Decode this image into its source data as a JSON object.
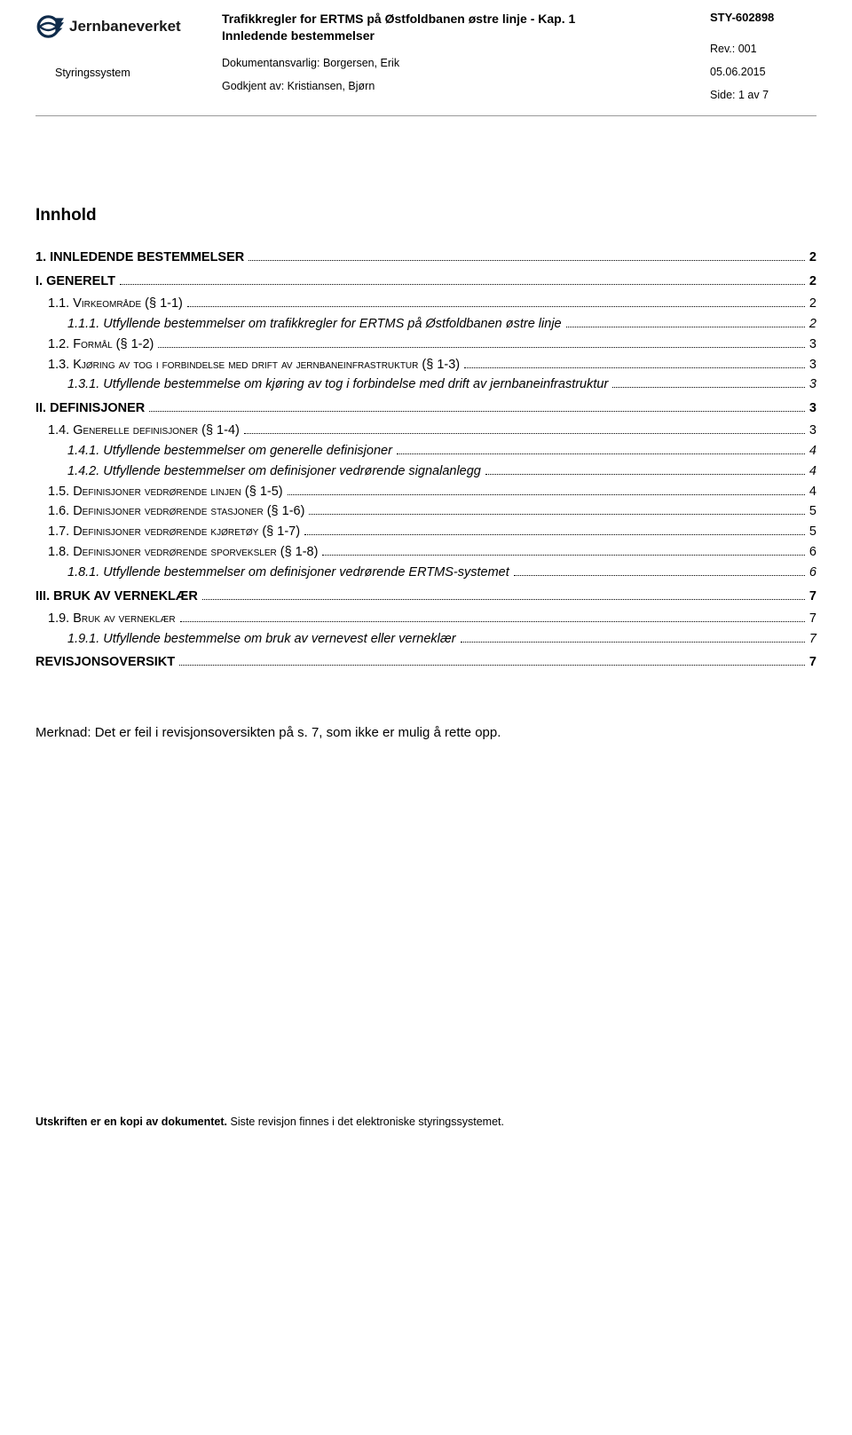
{
  "header": {
    "logo_text": "Jernbaneverket",
    "styringssystem": "Styringssystem",
    "title_line1": "Trafikkregler for ERTMS på Østfoldbanen østre linje - Kap. 1",
    "title_line2": "Innledende bestemmelser",
    "doc_ansvarlig": "Dokumentansvarlig: Borgersen, Erik",
    "godkjent": "Godkjent av:  Kristiansen, Bjørn",
    "sty": "STY-602898",
    "rev": "Rev.: 001",
    "date": "05.06.2015",
    "side": "Side: 1 av 7"
  },
  "innhold_title": "Innhold",
  "toc": [
    {
      "level": 1,
      "label": "1. INNLEDENDE BESTEMMELSER",
      "page": "2"
    },
    {
      "level": 1,
      "label": "I. GENERELT",
      "page": "2"
    },
    {
      "level": 2,
      "label": "1.1. Virkeområde (§ 1-1)",
      "page": "2",
      "sc": true
    },
    {
      "level": 3,
      "label": "1.1.1. Utfyllende bestemmelser om trafikkregler for ERTMS på Østfoldbanen østre linje",
      "page": "2"
    },
    {
      "level": 2,
      "label": "1.2. Formål (§ 1-2)",
      "page": "3",
      "sc": true
    },
    {
      "level": 2,
      "label": "1.3. Kjøring av tog i forbindelse med drift av jernbaneinfrastruktur (§ 1-3)",
      "page": "3",
      "sc": true
    },
    {
      "level": 3,
      "label": "1.3.1. Utfyllende bestemmelse om kjøring av tog i forbindelse med drift av jernbaneinfrastruktur",
      "page": "3"
    },
    {
      "level": 1,
      "label": "II. DEFINISJONER",
      "page": "3"
    },
    {
      "level": 2,
      "label": "1.4. Generelle definisjoner (§ 1-4)",
      "page": "3",
      "sc": true
    },
    {
      "level": 3,
      "label": "1.4.1. Utfyllende bestemmelser om generelle definisjoner",
      "page": "4"
    },
    {
      "level": 3,
      "label": "1.4.2. Utfyllende bestemmelser om definisjoner vedrørende signalanlegg",
      "page": "4"
    },
    {
      "level": 2,
      "label": "1.5. Definisjoner vedrørende linjen (§ 1-5)",
      "page": "4",
      "sc": true
    },
    {
      "level": 2,
      "label": "1.6. Definisjoner vedrørende stasjoner (§ 1-6)",
      "page": "5",
      "sc": true
    },
    {
      "level": 2,
      "label": "1.7. Definisjoner vedrørende kjøretøy (§ 1-7)",
      "page": "5",
      "sc": true
    },
    {
      "level": 2,
      "label": "1.8. Definisjoner vedrørende sporveksler (§ 1-8)",
      "page": "6",
      "sc": true
    },
    {
      "level": 3,
      "label": "1.8.1. Utfyllende bestemmelser om definisjoner vedrørende ERTMS-systemet",
      "page": "6"
    },
    {
      "level": 1,
      "label": "III. BRUK AV VERNEKLÆR",
      "page": "7"
    },
    {
      "level": 2,
      "label": "1.9. Bruk av verneklær",
      "page": "7",
      "sc": true
    },
    {
      "level": 3,
      "label": "1.9.1. Utfyllende bestemmelse om bruk av vernevest eller verneklær",
      "page": "7"
    },
    {
      "level": 1,
      "label": "REVISJONSOVERSIKT",
      "page": "7"
    }
  ],
  "note": "Merknad: Det er feil i revisjonsoversikten på s. 7, som ikke er mulig å rette opp.",
  "footer_bold": "Utskriften er en kopi av dokumentet.",
  "footer_rest": " Siste revisjon finnes i det elektroniske styringssystemet.",
  "colors": {
    "logo_dark": "#0f2b4a",
    "text": "#000000",
    "rule": "#999999"
  }
}
